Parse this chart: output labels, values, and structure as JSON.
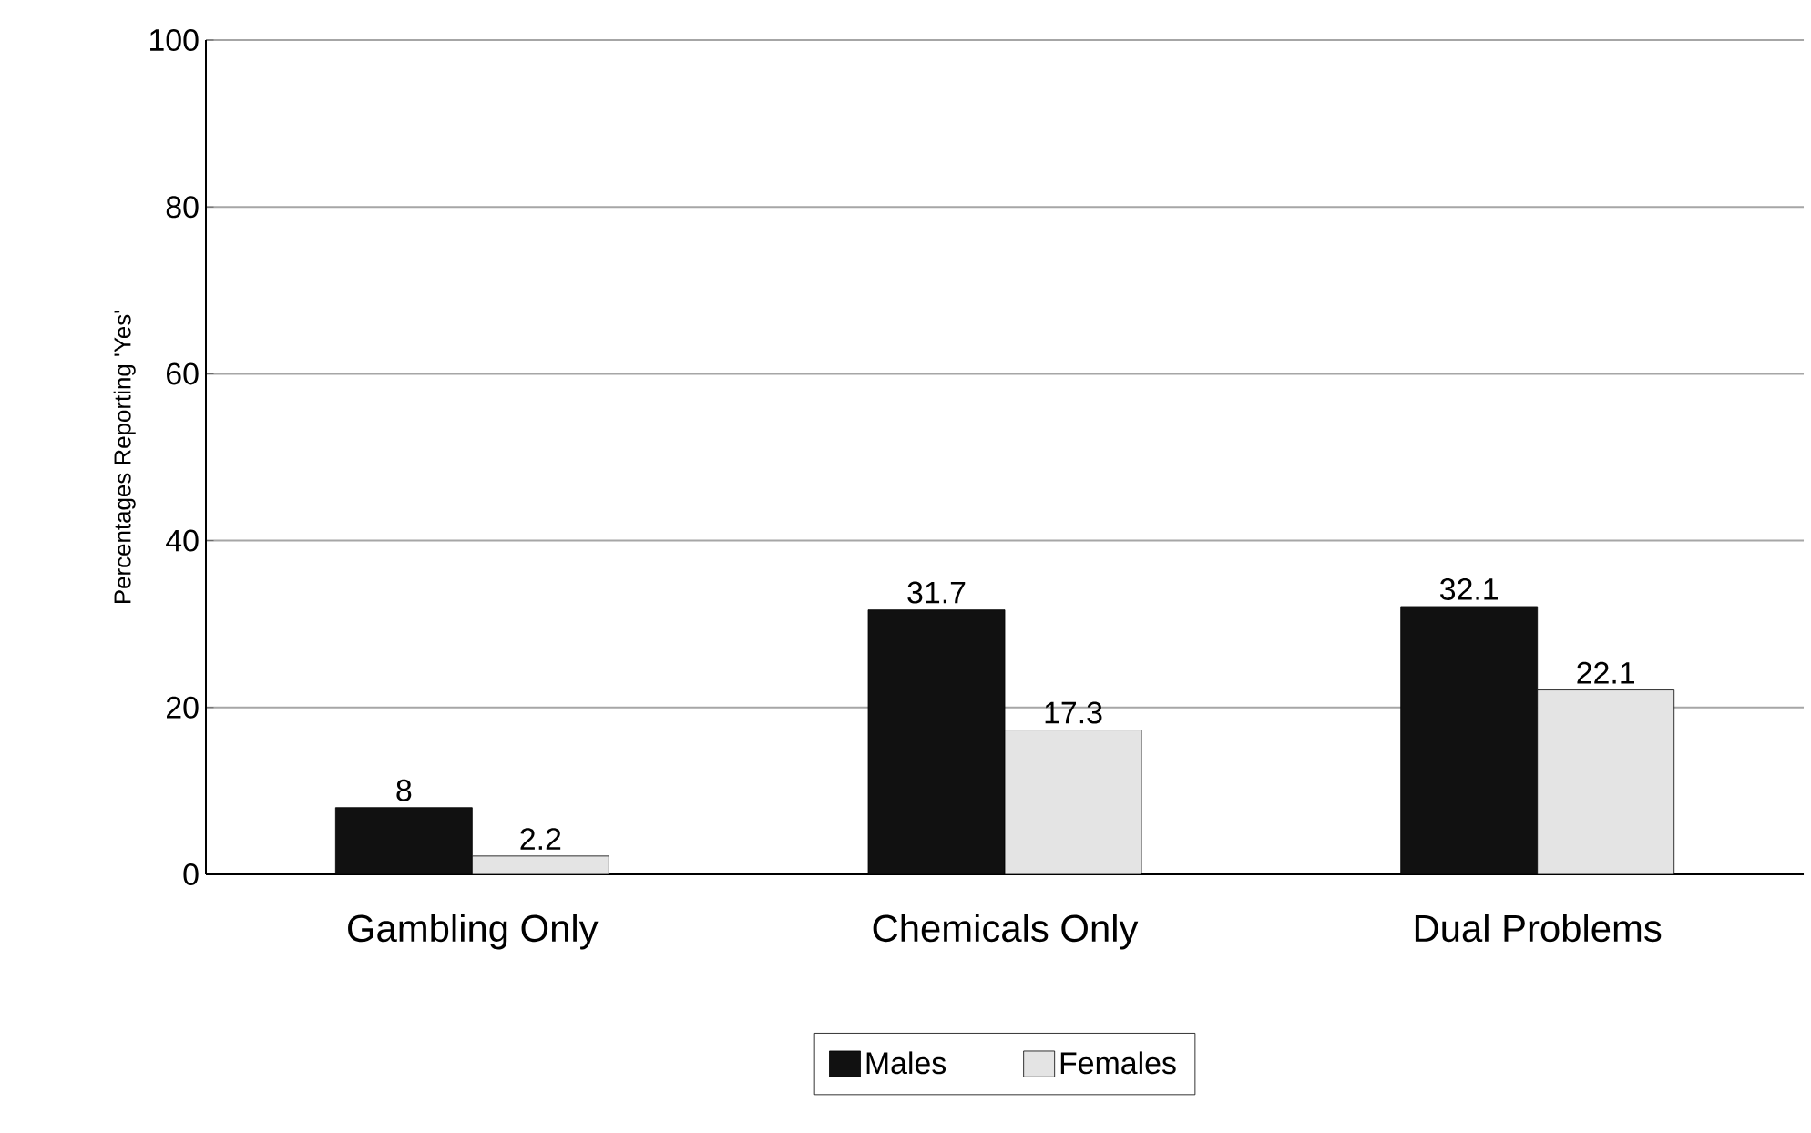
{
  "chart_data": {
    "type": "bar",
    "ylabel": "Percentages Reporting 'Yes'",
    "categories": [
      "Gambling Only",
      "Chemicals Only",
      "Dual Problems"
    ],
    "series": [
      {
        "name": "Males",
        "color": "#111111",
        "values": [
          8,
          31.7,
          32.1
        ]
      },
      {
        "name": "Females",
        "color": "#e4e4e4",
        "values": [
          2.2,
          17.3,
          22.1
        ]
      }
    ],
    "ylim": [
      0,
      100
    ],
    "yticks": [
      0,
      20,
      40,
      60,
      80,
      100
    ],
    "grid": "y",
    "data_labels": true,
    "legend": "bottom"
  }
}
